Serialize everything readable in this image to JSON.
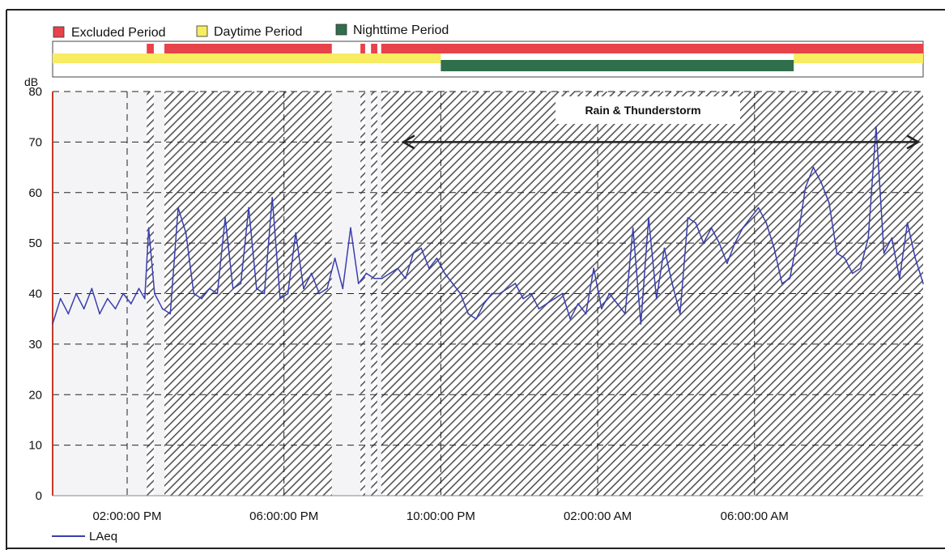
{
  "legend": [
    {
      "label": "Excluded Period",
      "color": "#e8424a"
    },
    {
      "label": "Daytime Period",
      "color": "#f7ec62"
    },
    {
      "label": "Nighttime Period",
      "color": "#2f6f4c"
    }
  ],
  "series_legend": {
    "label": "LAeq",
    "color": "#3a3fae"
  },
  "annotation": {
    "label": "Rain & Thunderstorm",
    "x_start": 21.0,
    "x_end": 34.3
  },
  "colors": {
    "plot_bg": "#f4f4f6",
    "hatch": "#555555",
    "grid": "#222222",
    "axis_left": "#c0392b",
    "line": "#3a3fae"
  },
  "chart_data": {
    "type": "line",
    "title": "",
    "xlabel": "",
    "ylabel": "dB",
    "ylim": [
      0,
      80
    ],
    "yticks": [
      0,
      10,
      20,
      30,
      40,
      50,
      60,
      70,
      80
    ],
    "x_unit": "hour of day (continues past 24 into next day)",
    "xlim": [
      12.1,
      34.3
    ],
    "xticks": [
      {
        "x": 14,
        "label": "02:00:00 PM"
      },
      {
        "x": 18,
        "label": "06:00:00 PM"
      },
      {
        "x": 22,
        "label": "10:00:00 PM"
      },
      {
        "x": 26,
        "label": "02:00:00 AM"
      },
      {
        "x": 30,
        "label": "06:00:00 AM"
      }
    ],
    "grid": true,
    "excluded_periods": [
      [
        14.5,
        14.68
      ],
      [
        14.95,
        19.22
      ],
      [
        19.95,
        20.07
      ],
      [
        20.22,
        20.38
      ],
      [
        20.48,
        34.3
      ]
    ],
    "period_bars": {
      "excluded": [
        [
          14.5,
          14.68
        ],
        [
          14.95,
          19.22
        ],
        [
          19.95,
          20.07
        ],
        [
          20.22,
          20.38
        ],
        [
          20.48,
          34.3
        ]
      ],
      "daytime": [
        [
          12.1,
          22.0
        ],
        [
          31.0,
          34.3
        ]
      ],
      "nighttime": [
        [
          22.0,
          31.0
        ]
      ]
    },
    "series": [
      {
        "name": "LAeq",
        "x": [
          12.1,
          12.3,
          12.5,
          12.7,
          12.9,
          13.1,
          13.3,
          13.5,
          13.7,
          13.9,
          14.1,
          14.3,
          14.45,
          14.55,
          14.7,
          14.9,
          15.1,
          15.3,
          15.5,
          15.7,
          15.9,
          16.1,
          16.3,
          16.5,
          16.7,
          16.9,
          17.1,
          17.3,
          17.5,
          17.7,
          17.9,
          18.1,
          18.3,
          18.5,
          18.7,
          18.9,
          19.1,
          19.3,
          19.5,
          19.7,
          19.9,
          20.1,
          20.3,
          20.5,
          20.7,
          20.9,
          21.1,
          21.3,
          21.5,
          21.7,
          21.9,
          22.1,
          22.3,
          22.5,
          22.7,
          22.9,
          23.1,
          23.3,
          23.5,
          23.7,
          23.9,
          24.1,
          24.3,
          24.5,
          24.7,
          24.9,
          25.1,
          25.3,
          25.5,
          25.7,
          25.9,
          26.1,
          26.3,
          26.5,
          26.7,
          26.9,
          27.1,
          27.3,
          27.5,
          27.7,
          27.9,
          28.1,
          28.3,
          28.5,
          28.7,
          28.9,
          29.1,
          29.3,
          29.5,
          29.7,
          29.9,
          30.1,
          30.3,
          30.5,
          30.7,
          30.9,
          31.1,
          31.3,
          31.5,
          31.7,
          31.9,
          32.1,
          32.3,
          32.5,
          32.7,
          32.9,
          33.1,
          33.3,
          33.5,
          33.7,
          33.9,
          34.1,
          34.3
        ],
        "y": [
          34,
          39,
          36,
          40,
          37,
          41,
          36,
          39,
          37,
          40,
          38,
          41,
          39,
          53,
          40,
          37,
          36,
          57,
          52,
          40,
          39,
          41,
          40,
          55,
          41,
          42,
          57,
          41,
          40,
          59,
          39,
          40,
          52,
          41,
          44,
          40,
          41,
          47,
          41,
          53,
          42,
          44,
          43,
          43,
          44,
          45,
          43,
          48,
          49,
          45,
          47,
          44,
          42,
          40,
          36,
          35,
          38,
          40,
          40,
          41,
          42,
          39,
          40,
          37,
          38,
          39,
          40,
          35,
          38,
          36,
          45,
          37,
          40,
          38,
          36,
          53,
          34,
          55,
          39,
          49,
          42,
          36,
          55,
          54,
          50,
          53,
          50,
          46,
          50,
          53,
          55,
          57,
          54,
          49,
          42,
          43,
          51,
          61,
          65,
          62,
          58,
          48,
          47,
          44,
          45,
          51,
          73,
          48,
          51,
          43,
          54,
          47,
          42
        ]
      }
    ]
  }
}
